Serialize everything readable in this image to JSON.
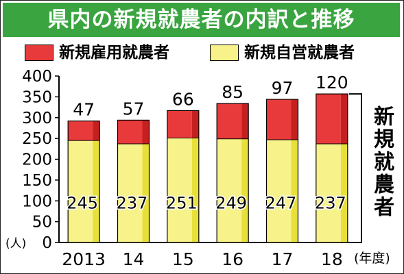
{
  "title": "県内の新規就農者の内訳と推移",
  "legend": {
    "employed": {
      "label": "新規雇用就農者",
      "color": "#e83a3a"
    },
    "self": {
      "label": "新規自営就農者",
      "color": "#f7f28a"
    }
  },
  "ylabel": "(人)",
  "xunit": "(年度)",
  "side_label": "新規就農者",
  "colors": {
    "title_bg": "#3aa540",
    "employed_side": "#c42020",
    "self_side": "#e8e03a"
  },
  "chart_data": {
    "type": "bar",
    "stacked": true,
    "categories": [
      "2013",
      "14",
      "15",
      "16",
      "17",
      "18"
    ],
    "series": [
      {
        "name": "新規自営就農者",
        "values": [
          245,
          237,
          251,
          249,
          247,
          237
        ]
      },
      {
        "name": "新規雇用就農者",
        "values": [
          47,
          57,
          66,
          85,
          97,
          120
        ]
      }
    ],
    "yticks": [
      0,
      50,
      100,
      150,
      200,
      250,
      300,
      350,
      400
    ],
    "ylim": [
      0,
      400
    ],
    "grid": false
  }
}
